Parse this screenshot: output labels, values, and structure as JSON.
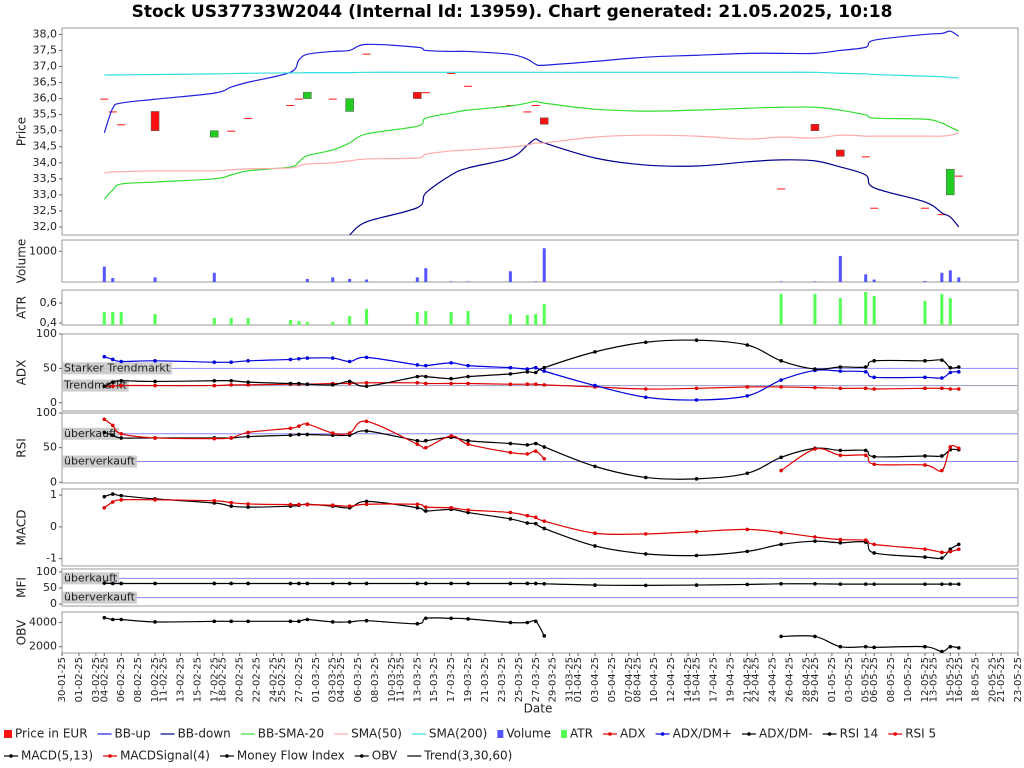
{
  "title": "Stock US37733W2044 (Internal Id: 13959). Chart generated: 21.05.2025, 10:18",
  "xlabel": "Date",
  "x": [
    "04-02-25",
    "05-02-25",
    "06-02-25",
    "10-02-25",
    "17-02-25",
    "19-02-25",
    "21-02-25",
    "26-02-25",
    "27-02-25",
    "28-02-25",
    "03-03-25",
    "05-03-25",
    "07-03-25",
    "13-03-25",
    "14-03-25",
    "17-03-25",
    "19-03-25",
    "24-03-25",
    "26-03-25",
    "27-03-25",
    "28-03-25",
    "03-04-25",
    "09-04-25",
    "15-04-25",
    "21-04-25",
    "25-04-25",
    "29-04-25",
    "02-05-25",
    "05-05-25",
    "06-05-25",
    "12-05-25",
    "14-05-25",
    "15-05-25",
    "16-05-25"
  ],
  "xlim": [
    "30-01-25",
    "23-05-25"
  ],
  "xticks": [
    "30-01-25",
    "01-02-25",
    "03-02-25",
    "04-02-25",
    "06-02-25",
    "08-02-25",
    "10-02-25",
    "11-02-25",
    "13-02-25",
    "15-02-25",
    "17-02-25",
    "18-02-25",
    "20-02-25",
    "22-02-25",
    "24-02-25",
    "25-02-25",
    "27-02-25",
    "01-03-25",
    "03-03-25",
    "04-03-25",
    "06-03-25",
    "08-03-25",
    "10-03-25",
    "11-03-25",
    "13-03-25",
    "15-03-25",
    "17-03-25",
    "19-03-25",
    "21-03-25",
    "23-03-25",
    "25-03-25",
    "27-03-25",
    "29-03-25",
    "31-03-25",
    "01-04-25",
    "03-04-25",
    "05-04-25",
    "07-04-25",
    "08-04-25",
    "10-04-25",
    "12-04-25",
    "14-04-25",
    "15-04-25",
    "17-04-25",
    "19-04-25",
    "21-04-25",
    "22-04-25",
    "24-04-25",
    "26-04-25",
    "28-04-25",
    "29-04-25",
    "01-05-25",
    "03-05-25",
    "05-05-25",
    "06-05-25",
    "08-05-25",
    "10-05-25",
    "12-05-25",
    "13-05-25",
    "15-05-25",
    "16-05-25",
    "18-05-25",
    "20-05-25",
    "21-05-25",
    "23-05-25"
  ],
  "chart_data": [
    {
      "type": "candlestick",
      "ylabel": "Price",
      "ylim": [
        31.75,
        38.2
      ],
      "yticks": [
        {
          "value": 32,
          "label": "32,0"
        },
        {
          "value": 32.5,
          "label": "32,5"
        },
        {
          "value": 33,
          "label": "33,0"
        },
        {
          "value": 33.5,
          "label": "33,5"
        },
        {
          "value": 34,
          "label": "34,0"
        },
        {
          "value": 34.5,
          "label": "34,5"
        },
        {
          "value": 35,
          "label": "35,0"
        },
        {
          "value": 35.5,
          "label": "35,5"
        },
        {
          "value": 36,
          "label": "36,0"
        },
        {
          "value": 36.5,
          "label": "36,5"
        },
        {
          "value": 37,
          "label": "37,0"
        },
        {
          "value": 37.5,
          "label": "37,5"
        },
        {
          "value": 38,
          "label": "38,0"
        }
      ],
      "series": [
        {
          "name": "Price in EUR",
          "color_up": "#22cc22",
          "color_down": "#ff1010",
          "open": [
            36.0,
            35.6,
            35.2,
            35.6,
            34.8,
            35.0,
            35.4,
            35.8,
            36.0,
            36.0,
            36.0,
            35.6,
            37.4,
            36.2,
            36.2,
            36.8,
            36.4,
            35.8,
            35.6,
            35.8,
            35.4,
            null,
            null,
            null,
            null,
            33.2,
            35.2,
            34.4,
            34.2,
            32.6,
            32.6,
            32.4,
            33.0,
            33.6
          ],
          "close": [
            36.0,
            35.6,
            35.2,
            35.0,
            35.0,
            35.0,
            35.4,
            35.8,
            36.0,
            36.2,
            36.0,
            36.0,
            37.4,
            36.0,
            36.2,
            36.8,
            36.4,
            35.8,
            35.6,
            35.8,
            35.2,
            null,
            null,
            null,
            null,
            33.2,
            35.0,
            34.2,
            34.2,
            32.6,
            32.6,
            32.4,
            33.8,
            33.6
          ]
        },
        {
          "name": "BB-up",
          "color": "#2020e0",
          "values": [
            34.93,
            35.7,
            35.86,
            35.98,
            36.17,
            36.36,
            36.51,
            36.82,
            37.2,
            37.38,
            37.47,
            37.5,
            37.69,
            37.6,
            37.5,
            37.47,
            37.47,
            37.38,
            37.23,
            37.07,
            37.04,
            37.16,
            37.29,
            37.35,
            37.41,
            37.41,
            37.41,
            37.5,
            37.6,
            37.82,
            38.0,
            38.03,
            38.1,
            37.94
          ]
        },
        {
          "name": "BB-down",
          "color": "#000090",
          "values": [
            null,
            null,
            null,
            null,
            null,
            null,
            null,
            null,
            null,
            null,
            null,
            31.75,
            32.16,
            32.6,
            33.06,
            33.62,
            33.84,
            34.15,
            34.55,
            34.74,
            34.62,
            34.15,
            33.93,
            33.9,
            34.03,
            34.09,
            34.06,
            33.87,
            33.62,
            33.22,
            32.78,
            32.44,
            32.31,
            32.0
          ]
        },
        {
          "name": "BB-SMA-20",
          "color": "#33dd33",
          "values": [
            32.87,
            33.15,
            33.34,
            33.4,
            33.5,
            33.62,
            33.75,
            33.87,
            34.03,
            34.22,
            34.4,
            34.62,
            34.9,
            35.14,
            35.39,
            35.55,
            35.64,
            35.77,
            35.86,
            35.92,
            35.86,
            35.67,
            35.61,
            35.64,
            35.7,
            35.73,
            35.73,
            35.64,
            35.49,
            35.39,
            35.36,
            35.24,
            35.11,
            34.99
          ]
        },
        {
          "name": "SMA(50)",
          "color": "#ffaaaa",
          "values": [
            33.68,
            33.72,
            33.72,
            33.75,
            33.75,
            33.78,
            33.81,
            33.84,
            33.9,
            33.96,
            34.0,
            34.06,
            34.12,
            34.15,
            34.27,
            34.37,
            34.4,
            34.49,
            34.55,
            34.62,
            34.62,
            34.8,
            34.86,
            34.83,
            34.74,
            34.8,
            34.77,
            34.86,
            34.83,
            34.83,
            34.83,
            34.83,
            34.86,
            34.93
          ]
        },
        {
          "name": "SMA(200)",
          "color": "#33dddd",
          "values": [
            36.73,
            36.74,
            36.74,
            36.75,
            36.77,
            36.78,
            36.79,
            36.8,
            36.8,
            36.81,
            36.81,
            36.81,
            36.82,
            36.82,
            36.82,
            36.82,
            36.82,
            36.82,
            36.82,
            36.82,
            36.82,
            36.82,
            36.82,
            36.82,
            36.82,
            36.82,
            36.82,
            36.79,
            36.77,
            36.75,
            36.7,
            36.68,
            36.66,
            36.64
          ]
        }
      ]
    },
    {
      "type": "bar",
      "ylabel": "Volume",
      "ylim": [
        0,
        1367
      ],
      "yticks": [
        1000
      ],
      "series": [
        {
          "name": "Volume",
          "color": "#5555ff",
          "values": [
            500,
            130,
            0,
            150,
            300,
            0,
            0,
            0,
            0,
            100,
            150,
            100,
            80,
            150,
            450,
            20,
            20,
            350,
            0,
            20,
            1100,
            0,
            0,
            0,
            0,
            20,
            20,
            850,
            250,
            80,
            30,
            300,
            380,
            150
          ]
        }
      ]
    },
    {
      "type": "bar",
      "ylabel": "ATR",
      "ylim": [
        0.38,
        0.73
      ],
      "yticks": [
        {
          "value": 0.4,
          "label": "0,4"
        },
        {
          "value": 0.6,
          "label": "0,6"
        }
      ],
      "series": [
        {
          "name": "ATR",
          "color": "#55ff55",
          "values": [
            0.51,
            0.51,
            0.51,
            0.49,
            0.45,
            0.45,
            0.45,
            0.43,
            0.42,
            0.41,
            0.41,
            0.47,
            0.54,
            0.51,
            0.52,
            0.51,
            0.52,
            0.49,
            0.48,
            0.49,
            0.59,
            null,
            null,
            null,
            null,
            0.69,
            0.69,
            0.65,
            0.71,
            0.67,
            0.62,
            0.69,
            0.65,
            null
          ]
        }
      ]
    },
    {
      "type": "line",
      "ylabel": "ADX",
      "ylim": [
        -12,
        100
      ],
      "yticks": [
        0,
        50,
        100
      ],
      "hlines": [
        {
          "value": 50,
          "label": "Starker Trendmarkt",
          "color": "#8888ff"
        },
        {
          "value": 25,
          "label": "Trendmarkt",
          "color": "#9999cc"
        }
      ],
      "series": [
        {
          "name": "ADX",
          "color": "#e00000",
          "markers": true,
          "values": [
            24,
            24,
            25,
            25,
            25,
            26,
            26,
            27,
            27,
            27,
            28,
            28,
            29,
            29,
            28,
            28,
            28,
            27,
            27,
            27,
            26,
            23,
            20,
            21,
            23,
            23,
            22,
            21,
            21,
            20,
            21,
            21,
            20,
            20
          ]
        },
        {
          "name": "ADX/DM+",
          "color": "#0000dd",
          "markers": true,
          "values": [
            67,
            63,
            60,
            61,
            59,
            59,
            61,
            63,
            64,
            65,
            65,
            60,
            66,
            55,
            54,
            58,
            54,
            51,
            49,
            51,
            46,
            25,
            8,
            4,
            10,
            33,
            47,
            46,
            45,
            37,
            37,
            36,
            44,
            45
          ]
        },
        {
          "name": "ADX/DM-",
          "color": "#000000",
          "markers": true,
          "values": [
            24,
            30,
            32,
            31,
            32,
            32,
            30,
            28,
            28,
            27,
            26,
            31,
            24,
            38,
            38,
            35,
            38,
            42,
            45,
            44,
            51,
            74,
            88,
            91,
            84,
            61,
            49,
            52,
            52,
            61,
            61,
            62,
            51,
            52
          ]
        }
      ]
    },
    {
      "type": "line",
      "ylabel": "RSI",
      "ylim": [
        -1,
        100
      ],
      "yticks": [
        0,
        50,
        100
      ],
      "hlines": [
        {
          "value": 70,
          "label": "überkauft",
          "color": "#8888ff"
        },
        {
          "value": 30,
          "label": "überverkauft",
          "color": "#8888ff"
        }
      ],
      "series": [
        {
          "name": "RSI 14",
          "color": "#000000",
          "markers": true,
          "values": [
            72,
            68,
            64,
            64,
            64,
            64,
            66,
            68,
            69,
            69,
            68,
            68,
            74,
            60,
            60,
            65,
            60,
            56,
            54,
            56,
            51,
            23,
            7,
            5,
            13,
            36,
            49,
            46,
            46,
            37,
            38,
            38,
            47,
            47
          ]
        },
        {
          "name": "RSI 5",
          "color": "#e00000",
          "markers": true,
          "values": [
            91,
            82,
            70,
            64,
            63,
            64,
            72,
            78,
            81,
            84,
            71,
            71,
            88,
            55,
            50,
            67,
            55,
            43,
            41,
            45,
            34,
            null,
            null,
            null,
            null,
            17,
            48,
            39,
            39,
            26,
            25,
            17,
            51,
            49
          ]
        }
      ]
    },
    {
      "type": "line",
      "ylabel": "MACD",
      "ylim": [
        -1.23,
        1.19
      ],
      "yticks": [
        -1,
        0,
        1
      ],
      "series": [
        {
          "name": "MACD(5,13)",
          "color": "#000000",
          "markers": true,
          "values": [
            0.95,
            1.03,
            0.98,
            0.88,
            0.75,
            0.65,
            0.62,
            0.65,
            0.68,
            0.71,
            0.65,
            0.6,
            0.8,
            0.6,
            0.5,
            0.55,
            0.45,
            0.25,
            0.12,
            0.1,
            -0.05,
            -0.6,
            -0.85,
            -0.9,
            -0.77,
            -0.55,
            -0.45,
            -0.5,
            -0.48,
            -0.82,
            -0.95,
            -0.98,
            -0.7,
            -0.55
          ]
        },
        {
          "name": "MACDSignal(4)",
          "color": "#e00000",
          "markers": true,
          "values": [
            0.6,
            0.78,
            0.85,
            0.85,
            0.82,
            0.76,
            0.72,
            0.7,
            0.7,
            0.7,
            0.68,
            0.65,
            0.71,
            0.71,
            0.62,
            0.6,
            0.53,
            0.45,
            0.35,
            0.3,
            0.18,
            -0.2,
            -0.22,
            -0.15,
            -0.08,
            -0.18,
            -0.32,
            -0.4,
            -0.42,
            -0.55,
            -0.7,
            -0.8,
            -0.78,
            -0.7
          ]
        }
      ]
    },
    {
      "type": "line",
      "ylabel": "MFI",
      "ylim": [
        -6,
        109
      ],
      "yticks": [
        0,
        50,
        100
      ],
      "hlines": [
        {
          "value": 80,
          "label": "überkauft",
          "color": "#8888ff"
        },
        {
          "value": 20,
          "label": "überverkauft",
          "color": "#8888ff"
        }
      ],
      "series": [
        {
          "name": "Money Flow Index",
          "color": "#000000",
          "markers": true,
          "values": [
            65,
            64,
            64,
            64,
            64,
            64,
            64,
            64,
            64,
            64,
            64,
            64,
            64,
            64,
            64,
            64,
            64,
            64,
            64,
            64,
            63,
            59,
            58,
            59,
            61,
            63,
            63,
            62,
            62,
            62,
            62,
            62,
            62,
            62
          ]
        }
      ]
    },
    {
      "type": "line",
      "ylabel": "OBV",
      "ylim": [
        1480,
        4870
      ],
      "yticks": [
        2000,
        4000
      ],
      "series": [
        {
          "name": "OBV",
          "color": "#000000",
          "markers": true,
          "values": [
            4400,
            4250,
            4250,
            4050,
            4100,
            4100,
            4100,
            4100,
            4100,
            4250,
            4050,
            4050,
            4150,
            3900,
            4350,
            4350,
            4300,
            4000,
            4000,
            4100,
            2900,
            null,
            null,
            null,
            null,
            2850,
            2850,
            2000,
            2000,
            1950,
            2000,
            1600,
            2000,
            1900
          ]
        },
        {
          "name": "Trend(3,30,60)",
          "color": "#000000",
          "values": [
            null,
            null,
            null,
            null,
            null,
            null,
            null,
            null,
            null,
            null,
            null,
            null,
            null,
            null,
            null,
            null,
            null,
            null,
            null,
            null,
            null,
            null,
            null,
            null,
            null,
            null,
            null,
            null,
            null,
            null,
            null,
            null,
            null,
            null
          ]
        }
      ]
    }
  ]
}
